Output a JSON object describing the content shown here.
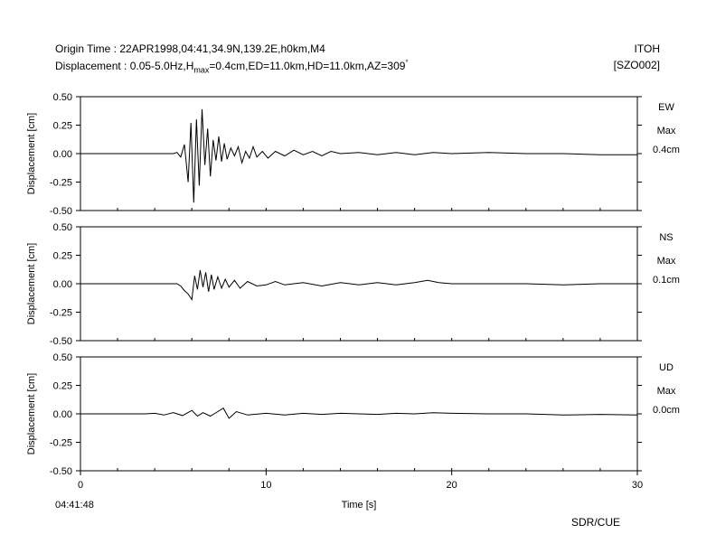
{
  "header": {
    "origin_line": "Origin Time : 22APR1998,04:41,34.9N,139.2E,h0km,M4",
    "disp_prefix": "Displacement : 0.05-5.0Hz,H",
    "disp_sub": "max",
    "disp_suffix": "=0.4cm,ED=11.0km,HD=11.0km,AZ=309",
    "disp_deg": "°",
    "station_name": "ITOH",
    "station_code": "[SZO002]"
  },
  "footer": {
    "start_time": "04:41:48",
    "credit": "SDR/CUE"
  },
  "chart_data": {
    "type": "line",
    "xlabel": "Time [s]",
    "ylabel": "Displacement [cm]",
    "xlim": [
      0,
      30
    ],
    "xticks": [
      "0",
      "10",
      "20",
      "30"
    ],
    "ylim": [
      -0.5,
      0.5
    ],
    "yticks": [
      "0.50",
      "0.25",
      "0.00",
      "-0.25",
      "-0.50"
    ],
    "grid": false,
    "max_label": "Max",
    "panels": [
      {
        "component": "EW",
        "max_value": "0.4cm",
        "t": [
          0,
          5.0,
          5.2,
          5.4,
          5.6,
          5.8,
          5.95,
          6.1,
          6.25,
          6.4,
          6.55,
          6.7,
          6.85,
          7.0,
          7.15,
          7.3,
          7.45,
          7.6,
          7.75,
          7.9,
          8.1,
          8.3,
          8.5,
          8.7,
          8.9,
          9.1,
          9.3,
          9.5,
          9.8,
          10.1,
          10.5,
          11.0,
          11.5,
          12.0,
          12.5,
          13.0,
          13.5,
          14.0,
          15.0,
          16.0,
          17.0,
          18.0,
          19.0,
          20.0,
          22.0,
          24.0,
          26.0,
          28.0,
          30.0
        ],
        "v": [
          0,
          0,
          0.01,
          -0.03,
          0.08,
          -0.25,
          0.27,
          -0.43,
          0.3,
          -0.28,
          0.39,
          -0.1,
          0.22,
          -0.2,
          0.12,
          -0.06,
          0.15,
          -0.07,
          0.09,
          -0.05,
          0.05,
          -0.02,
          0.06,
          -0.08,
          0.02,
          -0.04,
          0.06,
          -0.03,
          0.02,
          -0.04,
          0.02,
          -0.02,
          0.03,
          -0.01,
          0.02,
          -0.02,
          0.02,
          0.0,
          0.01,
          -0.01,
          0.01,
          -0.01,
          0.01,
          0.0,
          0.01,
          0.0,
          0.0,
          -0.01,
          -0.01
        ]
      },
      {
        "component": "NS",
        "max_value": "0.1cm",
        "t": [
          0,
          5.2,
          5.4,
          5.6,
          5.8,
          6.0,
          6.15,
          6.3,
          6.45,
          6.6,
          6.75,
          6.9,
          7.05,
          7.2,
          7.4,
          7.6,
          7.8,
          8.0,
          8.3,
          8.6,
          9.0,
          9.5,
          10.0,
          10.5,
          11.0,
          12.0,
          13.0,
          14.0,
          15.0,
          16.0,
          17.0,
          18.0,
          18.7,
          19.3,
          20.0,
          22.0,
          24.0,
          26.0,
          28.0,
          30.0
        ],
        "v": [
          0,
          0,
          -0.02,
          -0.06,
          -0.09,
          -0.14,
          0.07,
          -0.05,
          0.12,
          -0.03,
          0.1,
          -0.07,
          0.08,
          -0.05,
          0.06,
          -0.04,
          0.04,
          -0.03,
          0.03,
          -0.04,
          0.02,
          -0.02,
          -0.01,
          0.02,
          -0.01,
          0.01,
          -0.02,
          0.01,
          -0.01,
          0.01,
          -0.01,
          0.01,
          0.03,
          0.01,
          0.0,
          0.0,
          0.0,
          -0.01,
          0.0,
          0.0
        ]
      },
      {
        "component": "UD",
        "max_value": "0.0cm",
        "t": [
          0,
          3.5,
          4.0,
          4.5,
          5.0,
          5.5,
          6.0,
          6.3,
          6.6,
          7.0,
          7.4,
          7.7,
          8.0,
          8.4,
          9.0,
          10.0,
          11.0,
          12.0,
          13.0,
          14.0,
          15.0,
          16.0,
          17.0,
          18.0,
          19.0,
          20.0,
          22.0,
          24.0,
          26.0,
          28.0,
          30.0
        ],
        "v": [
          0,
          0,
          0.005,
          -0.01,
          0.01,
          -0.015,
          0.03,
          -0.02,
          0.01,
          -0.02,
          0.02,
          0.05,
          -0.04,
          0.02,
          -0.01,
          0.005,
          -0.01,
          0.005,
          -0.005,
          0.005,
          0.0,
          -0.005,
          0.005,
          0.0,
          0.01,
          0.005,
          0.0,
          0.0,
          -0.01,
          -0.005,
          -0.01
        ]
      }
    ]
  }
}
